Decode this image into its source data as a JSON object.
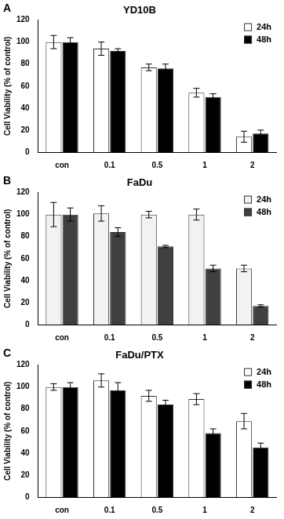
{
  "chart_data": [
    {
      "type": "bar",
      "annotation": "A",
      "title": "YD10B",
      "y_label": "Cell Viability (% of control)",
      "categories": [
        "con",
        "0.1",
        "0.5",
        "1",
        "2"
      ],
      "series": [
        {
          "name": "24h",
          "color": "#ffffff",
          "values": [
            100,
            94,
            77,
            54,
            14
          ],
          "errors": [
            6,
            6,
            3,
            4,
            5
          ]
        },
        {
          "name": "48h",
          "color": "#000000",
          "values": [
            100,
            92,
            76,
            50,
            17
          ],
          "errors": [
            4,
            2,
            4,
            3,
            3
          ]
        }
      ],
      "ylim": [
        0,
        120
      ],
      "yticks": [
        0,
        20,
        40,
        60,
        80,
        100,
        120
      ],
      "grid": false,
      "legend": "upper right"
    },
    {
      "type": "bar",
      "annotation": "B",
      "title": "FaDu",
      "y_label": "Cell Viability (% of control)",
      "categories": [
        "con",
        "0.1",
        "0.5",
        "1",
        "2"
      ],
      "series": [
        {
          "name": "24h",
          "color": "#f2f2f2",
          "values": [
            100,
            101,
            100,
            100,
            51
          ],
          "errors": [
            11,
            7,
            3,
            5,
            3
          ]
        },
        {
          "name": "48h",
          "color": "#404040",
          "values": [
            100,
            84,
            71,
            51,
            17
          ],
          "errors": [
            6,
            4,
            1,
            3,
            1
          ]
        }
      ],
      "ylim": [
        0,
        120
      ],
      "yticks": [
        0,
        20,
        40,
        60,
        80,
        100,
        120
      ],
      "grid": false,
      "legend": "upper right"
    },
    {
      "type": "bar",
      "annotation": "C",
      "title": "FaDu/PTX",
      "y_label": "Cell Viability (% of control)",
      "categories": [
        "con",
        "0.1",
        "0.5",
        "1",
        "2"
      ],
      "series": [
        {
          "name": "24h",
          "color": "#ffffff",
          "values": [
            100,
            106,
            92,
            89,
            69
          ],
          "errors": [
            3,
            6,
            5,
            5,
            7
          ]
        },
        {
          "name": "48h",
          "color": "#000000",
          "values": [
            100,
            97,
            84,
            58,
            45
          ],
          "errors": [
            4,
            7,
            4,
            4,
            4
          ]
        }
      ],
      "ylim": [
        0,
        120
      ],
      "yticks": [
        0,
        20,
        40,
        60,
        80,
        100,
        120
      ],
      "grid": false,
      "legend": "upper right"
    }
  ]
}
